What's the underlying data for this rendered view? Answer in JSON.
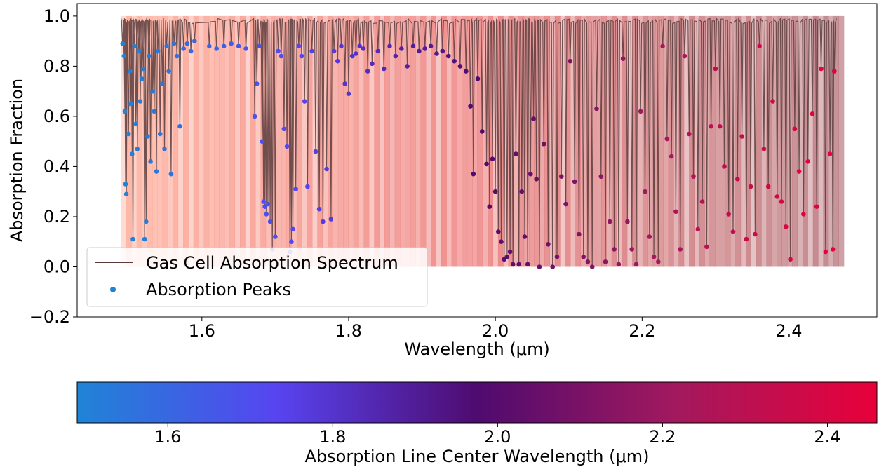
{
  "chart_data": [
    {
      "type": "scatter",
      "title": "",
      "xlabel": "Wavelength (μm)",
      "ylabel": "Absorption Fraction",
      "xlim": [
        1.43,
        2.52
      ],
      "ylim": [
        -0.2,
        1.05
      ],
      "xticks": [
        1.6,
        1.8,
        2.0,
        2.2,
        2.4
      ],
      "xtick_labels": [
        "1.6",
        "1.8",
        "2.0",
        "2.2",
        "2.4"
      ],
      "yticks": [
        -0.2,
        0.0,
        0.2,
        0.4,
        0.6,
        0.8,
        1.0
      ],
      "ytick_labels": [
        "−0.2",
        "0.0",
        "0.2",
        "0.4",
        "0.6",
        "0.8",
        "1.0"
      ],
      "grid": false,
      "legend_position": "lower-left",
      "series": [
        {
          "name": "Gas Cell Absorption Spectrum",
          "kind": "line",
          "color": "#5a3c3c",
          "x_range": [
            1.49,
            2.465
          ],
          "baseline": 0.99
        },
        {
          "name": "Absorption Peaks",
          "kind": "scatter",
          "colormap": "wavelength",
          "points": [
            [
              1.492,
              0.89
            ],
            [
              1.494,
              0.84
            ],
            [
              1.495,
              0.62
            ],
            [
              1.496,
              0.33
            ],
            [
              1.497,
              0.29
            ],
            [
              1.5,
              0.53
            ],
            [
              1.502,
              0.78
            ],
            [
              1.503,
              0.65
            ],
            [
              1.505,
              0.45
            ],
            [
              1.506,
              0.11
            ],
            [
              1.508,
              0.88
            ],
            [
              1.51,
              0.57
            ],
            [
              1.512,
              0.47
            ],
            [
              1.514,
              0.86
            ],
            [
              1.516,
              0.66
            ],
            [
              1.518,
              0.75
            ],
            [
              1.52,
              0.79
            ],
            [
              1.522,
              0.11
            ],
            [
              1.524,
              0.18
            ],
            [
              1.526,
              0.52
            ],
            [
              1.528,
              0.84
            ],
            [
              1.53,
              0.42
            ],
            [
              1.533,
              0.7
            ],
            [
              1.535,
              0.62
            ],
            [
              1.538,
              0.38
            ],
            [
              1.54,
              0.86
            ],
            [
              1.543,
              0.53
            ],
            [
              1.546,
              0.73
            ],
            [
              1.549,
              0.47
            ],
            [
              1.552,
              0.88
            ],
            [
              1.555,
              0.78
            ],
            [
              1.558,
              0.37
            ],
            [
              1.562,
              0.89
            ],
            [
              1.566,
              0.84
            ],
            [
              1.57,
              0.56
            ],
            [
              1.575,
              0.87
            ],
            [
              1.58,
              0.89
            ],
            [
              1.585,
              0.86
            ],
            [
              1.59,
              0.9
            ],
            [
              1.61,
              0.88
            ],
            [
              1.62,
              0.87
            ],
            [
              1.63,
              0.88
            ],
            [
              1.64,
              0.89
            ],
            [
              1.65,
              0.88
            ],
            [
              1.66,
              0.87
            ],
            [
              1.672,
              0.6
            ],
            [
              1.675,
              0.73
            ],
            [
              1.678,
              0.88
            ],
            [
              1.682,
              0.5
            ],
            [
              1.684,
              0.26
            ],
            [
              1.686,
              0.24
            ],
            [
              1.688,
              0.21
            ],
            [
              1.69,
              0.25
            ],
            [
              1.693,
              0.18
            ],
            [
              1.696,
              0.07
            ],
            [
              1.7,
              0.12
            ],
            [
              1.704,
              0.86
            ],
            [
              1.708,
              0.84
            ],
            [
              1.712,
              0.55
            ],
            [
              1.716,
              0.48
            ],
            [
              1.72,
              0.06
            ],
            [
              1.722,
              0.1
            ],
            [
              1.724,
              0.15
            ],
            [
              1.728,
              0.31
            ],
            [
              1.732,
              0.88
            ],
            [
              1.736,
              0.84
            ],
            [
              1.74,
              0.66
            ],
            [
              1.744,
              0.32
            ],
            [
              1.75,
              0.86
            ],
            [
              1.755,
              0.46
            ],
            [
              1.76,
              0.23
            ],
            [
              1.765,
              0.18
            ],
            [
              1.77,
              0.39
            ],
            [
              1.776,
              0.19
            ],
            [
              1.78,
              0.86
            ],
            [
              1.785,
              0.82
            ],
            [
              1.79,
              0.88
            ],
            [
              1.795,
              0.73
            ],
            [
              1.8,
              0.69
            ],
            [
              1.805,
              0.84
            ],
            [
              1.81,
              0.85
            ],
            [
              1.815,
              0.88
            ],
            [
              1.82,
              0.87
            ],
            [
              1.826,
              0.78
            ],
            [
              1.832,
              0.81
            ],
            [
              1.84,
              0.86
            ],
            [
              1.848,
              0.79
            ],
            [
              1.856,
              0.88
            ],
            [
              1.864,
              0.84
            ],
            [
              1.872,
              0.87
            ],
            [
              1.88,
              0.8
            ],
            [
              1.888,
              0.88
            ],
            [
              1.896,
              0.86
            ],
            [
              1.904,
              0.87
            ],
            [
              1.912,
              0.88
            ],
            [
              1.92,
              0.85
            ],
            [
              1.928,
              0.86
            ],
            [
              1.936,
              0.84
            ],
            [
              1.944,
              0.82
            ],
            [
              1.952,
              0.8
            ],
            [
              1.96,
              0.78
            ],
            [
              1.966,
              0.64
            ],
            [
              1.97,
              0.37
            ],
            [
              1.976,
              0.75
            ],
            [
              1.982,
              0.54
            ],
            [
              1.988,
              0.41
            ],
            [
              1.992,
              0.24
            ],
            [
              1.996,
              0.43
            ],
            [
              2.0,
              0.3
            ],
            [
              2.004,
              0.14
            ],
            [
              2.008,
              0.1
            ],
            [
              2.012,
              0.03
            ],
            [
              2.016,
              0.04
            ],
            [
              2.02,
              0.06
            ],
            [
              2.024,
              0.01
            ],
            [
              2.028,
              0.45
            ],
            [
              2.032,
              0.01
            ],
            [
              2.036,
              0.3
            ],
            [
              2.04,
              0.12
            ],
            [
              2.044,
              0.01
            ],
            [
              2.048,
              0.37
            ],
            [
              2.052,
              0.59
            ],
            [
              2.056,
              0.35
            ],
            [
              2.06,
              0.0
            ],
            [
              2.066,
              0.49
            ],
            [
              2.072,
              0.09
            ],
            [
              2.078,
              0.0
            ],
            [
              2.084,
              0.04
            ],
            [
              2.09,
              0.36
            ],
            [
              2.096,
              0.25
            ],
            [
              2.102,
              0.82
            ],
            [
              2.108,
              0.34
            ],
            [
              2.114,
              0.13
            ],
            [
              2.12,
              0.04
            ],
            [
              2.126,
              0.02
            ],
            [
              2.132,
              0.0
            ],
            [
              2.138,
              0.63
            ],
            [
              2.144,
              0.36
            ],
            [
              2.15,
              0.02
            ],
            [
              2.156,
              0.18
            ],
            [
              2.162,
              0.07
            ],
            [
              2.168,
              0.01
            ],
            [
              2.174,
              0.83
            ],
            [
              2.18,
              0.18
            ],
            [
              2.186,
              0.07
            ],
            [
              2.192,
              0.01
            ],
            [
              2.198,
              0.62
            ],
            [
              2.204,
              0.3
            ],
            [
              2.21,
              0.12
            ],
            [
              2.216,
              0.04
            ],
            [
              2.222,
              0.02
            ],
            [
              2.228,
              0.88
            ],
            [
              2.234,
              0.51
            ],
            [
              2.24,
              0.44
            ],
            [
              2.246,
              0.22
            ],
            [
              2.252,
              0.07
            ],
            [
              2.258,
              0.84
            ],
            [
              2.264,
              0.53
            ],
            [
              2.27,
              0.36
            ],
            [
              2.276,
              0.15
            ],
            [
              2.282,
              0.26
            ],
            [
              2.288,
              0.08
            ],
            [
              2.294,
              0.56
            ],
            [
              2.3,
              0.79
            ],
            [
              2.306,
              0.56
            ],
            [
              2.312,
              0.4
            ],
            [
              2.318,
              0.21
            ],
            [
              2.324,
              0.14
            ],
            [
              2.33,
              0.35
            ],
            [
              2.336,
              0.52
            ],
            [
              2.342,
              0.11
            ],
            [
              2.348,
              0.32
            ],
            [
              2.354,
              0.13
            ],
            [
              2.36,
              0.88
            ],
            [
              2.366,
              0.47
            ],
            [
              2.372,
              0.32
            ],
            [
              2.378,
              0.66
            ],
            [
              2.384,
              0.28
            ],
            [
              2.39,
              0.26
            ],
            [
              2.396,
              0.16
            ],
            [
              2.402,
              0.03
            ],
            [
              2.408,
              0.55
            ],
            [
              2.414,
              0.38
            ],
            [
              2.42,
              0.21
            ],
            [
              2.426,
              0.42
            ],
            [
              2.432,
              0.61
            ],
            [
              2.438,
              0.24
            ],
            [
              2.444,
              0.79
            ],
            [
              2.45,
              0.06
            ],
            [
              2.456,
              0.45
            ],
            [
              2.46,
              0.07
            ],
            [
              2.462,
              0.78
            ]
          ]
        }
      ],
      "shading": {
        "x_range": [
          1.49,
          2.475
        ],
        "y_range": [
          0.0,
          1.0
        ],
        "color_start": "#ff9a82",
        "color_mid": "#e85f5f",
        "color_end": "#a75a62"
      }
    },
    {
      "type": "colorbar",
      "label": "Absorption Line Center Wavelength (μm)",
      "range": [
        1.49,
        2.46
      ],
      "ticks": [
        1.6,
        1.8,
        2.0,
        2.2,
        2.4
      ],
      "tick_labels": [
        "1.6",
        "1.8",
        "2.0",
        "2.2",
        "2.4"
      ],
      "colors": [
        "#1f84d6",
        "#5744f0",
        "#4e0b6f",
        "#a3195e",
        "#e8003a"
      ]
    }
  ]
}
